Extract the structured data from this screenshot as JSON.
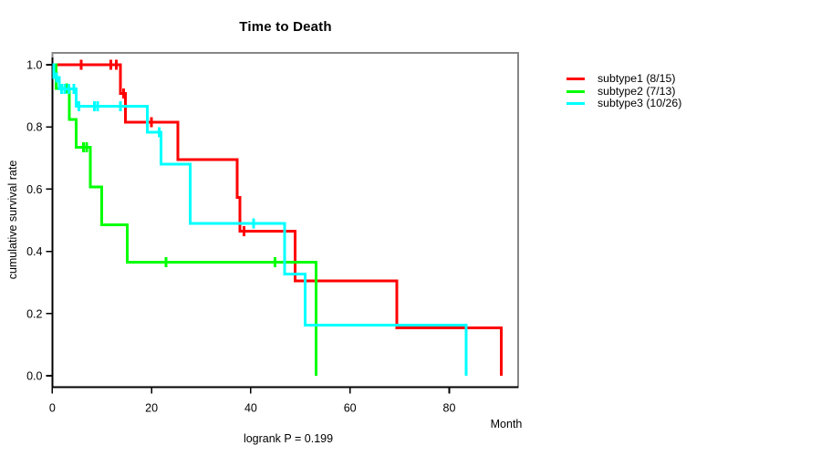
{
  "title": "Time to Death",
  "footer": {
    "logrank": "logrank P = 0.199"
  },
  "axes": {
    "x_label": "Month",
    "y_label": "cumulative survival rate",
    "x_ticks": [
      {
        "label": "0",
        "value": 0
      },
      {
        "label": "20",
        "value": 20
      },
      {
        "label": "40",
        "value": 40
      },
      {
        "label": "60",
        "value": 60
      },
      {
        "label": "80",
        "value": 80
      }
    ],
    "y_ticks": [
      {
        "label": "1.0",
        "value": 1.0
      },
      {
        "label": "0.8",
        "value": 0.8
      },
      {
        "label": "0.6",
        "value": 0.6
      },
      {
        "label": "0.4",
        "value": 0.4
      },
      {
        "label": "0.2",
        "value": 0.2
      },
      {
        "label": "0.0",
        "value": 0.0
      }
    ]
  },
  "legend": [
    {
      "label": "subtype1 (8/15)",
      "color": "#ff0000"
    },
    {
      "label": "subtype2 (7/13)",
      "color": "#00ff00"
    },
    {
      "label": "subtype3 (10/26)",
      "color": "#00ffff"
    }
  ],
  "colors": {
    "box_gray": "#878787",
    "axis_black": "#000000",
    "background": "#ffffff"
  },
  "chart_data": {
    "type": "line",
    "subtype": "kaplan-meier-step",
    "title": "Time to Death",
    "xlabel": "Month",
    "ylabel": "cumulative survival rate",
    "xlim": [
      0,
      94
    ],
    "ylim": [
      0,
      1.0
    ],
    "grid": false,
    "legend_position": "right-outside",
    "annotation": "logrank P = 0.199",
    "series": [
      {
        "name": "subtype1 (8/15)",
        "color": "#ff0000",
        "step_points": [
          [
            0,
            1
          ],
          [
            13.7,
            1
          ],
          [
            13.7,
            0.908
          ],
          [
            14.7,
            0.908
          ],
          [
            14.7,
            0.815
          ],
          [
            25.3,
            0.815
          ],
          [
            25.3,
            0.695
          ],
          [
            37.3,
            0.695
          ],
          [
            37.3,
            0.573
          ],
          [
            37.8,
            0.573
          ],
          [
            37.8,
            0.465
          ],
          [
            48.9,
            0.465
          ],
          [
            48.9,
            0.305
          ],
          [
            69.4,
            0.305
          ],
          [
            69.4,
            0.154
          ],
          [
            90.5,
            0.154
          ],
          [
            90.5,
            0
          ]
        ],
        "censors": [
          [
            5.8,
            1
          ],
          [
            11.8,
            1
          ],
          [
            12.9,
            1
          ],
          [
            14.4,
            0.908
          ],
          [
            20.0,
            0.815
          ],
          [
            38.6,
            0.465
          ]
        ]
      },
      {
        "name": "subtype2 (7/13)",
        "color": "#00ff00",
        "step_points": [
          [
            0,
            1
          ],
          [
            0.8,
            1
          ],
          [
            0.8,
            0.924
          ],
          [
            3.4,
            0.924
          ],
          [
            3.4,
            0.824
          ],
          [
            4.8,
            0.824
          ],
          [
            4.8,
            0.734
          ],
          [
            7.7,
            0.734
          ],
          [
            7.7,
            0.607
          ],
          [
            10.0,
            0.607
          ],
          [
            10.0,
            0.485
          ],
          [
            15.1,
            0.485
          ],
          [
            15.1,
            0.365
          ],
          [
            53.2,
            0.365
          ],
          [
            53.2,
            0
          ]
        ],
        "censors": [
          [
            2.9,
            0.924
          ],
          [
            6.3,
            0.734
          ],
          [
            6.9,
            0.734
          ],
          [
            22.9,
            0.365
          ],
          [
            44.9,
            0.365
          ]
        ]
      },
      {
        "name": "subtype3 (10/26)",
        "color": "#00ffff",
        "step_points": [
          [
            0,
            1
          ],
          [
            0.3,
            1
          ],
          [
            0.3,
            0.959
          ],
          [
            1.4,
            0.959
          ],
          [
            1.4,
            0.922
          ],
          [
            4.8,
            0.922
          ],
          [
            4.8,
            0.867
          ],
          [
            19.2,
            0.867
          ],
          [
            19.2,
            0.783
          ],
          [
            21.9,
            0.783
          ],
          [
            21.9,
            0.68
          ],
          [
            27.8,
            0.68
          ],
          [
            27.8,
            0.49
          ],
          [
            46.8,
            0.49
          ],
          [
            46.8,
            0.327
          ],
          [
            51.0,
            0.327
          ],
          [
            51.0,
            0.163
          ],
          [
            83.4,
            0.163
          ],
          [
            83.4,
            0
          ]
        ],
        "censors": [
          [
            0.9,
            0.959
          ],
          [
            1.9,
            0.922
          ],
          [
            2.5,
            0.922
          ],
          [
            3.3,
            0.922
          ],
          [
            4.4,
            0.922
          ],
          [
            5.4,
            0.867
          ],
          [
            8.5,
            0.867
          ],
          [
            9.1,
            0.867
          ],
          [
            13.7,
            0.867
          ],
          [
            21.5,
            0.783
          ],
          [
            40.6,
            0.49
          ]
        ]
      }
    ]
  }
}
